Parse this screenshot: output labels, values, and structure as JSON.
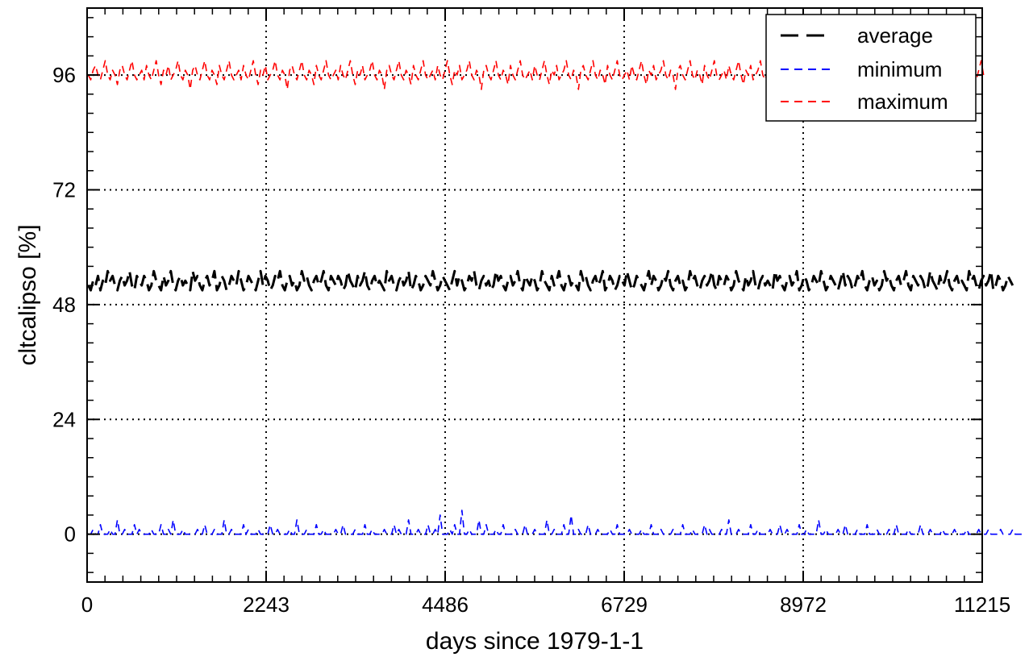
{
  "chart_data": {
    "type": "line",
    "title": "",
    "xlabel": "days since 1979-1-1",
    "ylabel": "cltcalipso [%]",
    "xlim": [
      0,
      11215
    ],
    "ylim": [
      -10,
      110
    ],
    "xticks": [
      0,
      2243,
      4486,
      6729,
      8972,
      11215
    ],
    "xtick_labels": [
      "0",
      "2243",
      "4486",
      "6729",
      "8972",
      "11215"
    ],
    "yticks": [
      0,
      24,
      48,
      72,
      96
    ],
    "ytick_labels": [
      "0",
      "24",
      "48",
      "72",
      "96"
    ],
    "grid": true,
    "legend_position": "top-right",
    "series": [
      {
        "name": "average",
        "color": "#000000",
        "style": "long-dash",
        "x_start": 15,
        "x_step": 30.4,
        "values": [
          52,
          51,
          53,
          52,
          54,
          51,
          53,
          52,
          55,
          53,
          54,
          52,
          51,
          53,
          54,
          52,
          53,
          55,
          52,
          51,
          54,
          53,
          52,
          54,
          53,
          51,
          52,
          55,
          53,
          52,
          51,
          54,
          52,
          53,
          55,
          52,
          51,
          53,
          54,
          52,
          53,
          52,
          51,
          55,
          53,
          54,
          52,
          51,
          53,
          54,
          52,
          53,
          55,
          51,
          52,
          54,
          53,
          51,
          52,
          54,
          53,
          52,
          55,
          53,
          51,
          52,
          54,
          53,
          52,
          51,
          53,
          55,
          52,
          54,
          53,
          51,
          52,
          54,
          53,
          55,
          52,
          51,
          53,
          54,
          52,
          53,
          51,
          52,
          55,
          53,
          54,
          52,
          51,
          53,
          54,
          52,
          53,
          55,
          52,
          51,
          54,
          53,
          52,
          54,
          53,
          51,
          52,
          55,
          53,
          52,
          51,
          54,
          52,
          53,
          55,
          52,
          51,
          53,
          54,
          52,
          53,
          52,
          51,
          55,
          53,
          54,
          52,
          51,
          53,
          54,
          52,
          53,
          55,
          51,
          52,
          54,
          53,
          51,
          52,
          54,
          53,
          52,
          55,
          53,
          51,
          52,
          54,
          53,
          52,
          51,
          53,
          55,
          52,
          54,
          53,
          51,
          52,
          54,
          53,
          55,
          52,
          51,
          53,
          54,
          52,
          53,
          51,
          52,
          55,
          53,
          54,
          52,
          51,
          53,
          54,
          52,
          53,
          55,
          52,
          51,
          54,
          53,
          52,
          54,
          53,
          51,
          52,
          55,
          53,
          52,
          51,
          54,
          52,
          53,
          55,
          52,
          51,
          53,
          54,
          52,
          53,
          52,
          51,
          55,
          53,
          54,
          52,
          51,
          53,
          54,
          52,
          53,
          55,
          51,
          52,
          54,
          53,
          51,
          52,
          54,
          53,
          52,
          55,
          53,
          51,
          52,
          54,
          53,
          52,
          51,
          53,
          55,
          52,
          54,
          53,
          51,
          52,
          54,
          53,
          55,
          52,
          51,
          53,
          54,
          52,
          53,
          51,
          52,
          55,
          53,
          54,
          52,
          51,
          53,
          54,
          52,
          53,
          55,
          52,
          51,
          54,
          53,
          52,
          54,
          53,
          51,
          52,
          55,
          53,
          52,
          51,
          54,
          52,
          53,
          55,
          52,
          51,
          53,
          54,
          52,
          53,
          52,
          51,
          55,
          53,
          54,
          52,
          51,
          53,
          54,
          52,
          53,
          55,
          51,
          52,
          54,
          53,
          51,
          52,
          54,
          53,
          52,
          55,
          53,
          51,
          52,
          54,
          53,
          52,
          51,
          53,
          55,
          52,
          54,
          53,
          51,
          52,
          54,
          53,
          55,
          52,
          51,
          53,
          54,
          52,
          53,
          51,
          52,
          55,
          53,
          54,
          52,
          51,
          53,
          54,
          52,
          53,
          55,
          52,
          51,
          54,
          53,
          52,
          54,
          53,
          51,
          52,
          55,
          53,
          52,
          51,
          54,
          52,
          53,
          55,
          52,
          51,
          53,
          54,
          52,
          53,
          52,
          51,
          55,
          53,
          54,
          52,
          51,
          53,
          54,
          52,
          53,
          55,
          51,
          52,
          54,
          53,
          51,
          52,
          54,
          53,
          52
        ]
      },
      {
        "name": "minimum",
        "color": "#0000ff",
        "style": "dash",
        "x_start": 15,
        "x_step": 30.4,
        "values": [
          0,
          0,
          1,
          0,
          0,
          2,
          0,
          0,
          0,
          1,
          0,
          0,
          3,
          0,
          0,
          1,
          0,
          0,
          0,
          2,
          0,
          1,
          0,
          0,
          0,
          0,
          1,
          0,
          0,
          0,
          2,
          0,
          0,
          1,
          0,
          3,
          0,
          0,
          0,
          1,
          0,
          0,
          0,
          0,
          0,
          1,
          0,
          0,
          2,
          0,
          0,
          0,
          1,
          0,
          0,
          0,
          3,
          0,
          0,
          1,
          0,
          0,
          0,
          0,
          2,
          0,
          1,
          0,
          0,
          0,
          1,
          0,
          0,
          0,
          0,
          2,
          0,
          0,
          1,
          0,
          0,
          0,
          0,
          1,
          0,
          0,
          3,
          0,
          0,
          0,
          1,
          0,
          0,
          0,
          2,
          0,
          0,
          1,
          0,
          0,
          0,
          0,
          1,
          0,
          0,
          2,
          0,
          0,
          0,
          0,
          1,
          0,
          0,
          0,
          2,
          0,
          0,
          1,
          0,
          0,
          0,
          0,
          1,
          0,
          0,
          0,
          2,
          0,
          1,
          0,
          0,
          0,
          3,
          0,
          0,
          0,
          1,
          0,
          0,
          0,
          2,
          0,
          0,
          1,
          0,
          4,
          0,
          0,
          0,
          1,
          0,
          2,
          0,
          0,
          5,
          0,
          0,
          1,
          0,
          0,
          0,
          3,
          0,
          0,
          2,
          0,
          0,
          0,
          1,
          0,
          0,
          2,
          0,
          0,
          0,
          0,
          1,
          0,
          0,
          0,
          2,
          0,
          0,
          0,
          1,
          0,
          0,
          0,
          0,
          3,
          0,
          0,
          1,
          0,
          0,
          0,
          2,
          0,
          0,
          4,
          0,
          0,
          1,
          0,
          0,
          0,
          2,
          0,
          0,
          0,
          1,
          0,
          0,
          0,
          0,
          1,
          0,
          0,
          2,
          0,
          0,
          0,
          0,
          1,
          0,
          0,
          0,
          0,
          1,
          0,
          0,
          0,
          2,
          0,
          0,
          0,
          1,
          0,
          0,
          0,
          0,
          1,
          0,
          0,
          0,
          2,
          0,
          0,
          0,
          1,
          0,
          0,
          0,
          0,
          2,
          0,
          1,
          0,
          0,
          0,
          0,
          1,
          0,
          0,
          3,
          0,
          0,
          0,
          1,
          0,
          0,
          0,
          0,
          2,
          0,
          0,
          1,
          0,
          0,
          0,
          0,
          1,
          0,
          0,
          0,
          2,
          0,
          0,
          1,
          0,
          0,
          0,
          0,
          2,
          0,
          0,
          1,
          0,
          0,
          0,
          0,
          3,
          0,
          0,
          1,
          0,
          0,
          0,
          0,
          1,
          0,
          0,
          2,
          0,
          0,
          0,
          0,
          1,
          0,
          0,
          0,
          2,
          0,
          0,
          0,
          1,
          0,
          0,
          0,
          0,
          1,
          0,
          0,
          2,
          0,
          0,
          0,
          0,
          1,
          0,
          0,
          0,
          0,
          2,
          0,
          0,
          0,
          1,
          0,
          0,
          0,
          0,
          1,
          0,
          0,
          0,
          0,
          1,
          0,
          0,
          0,
          0,
          1,
          0,
          0,
          0,
          0,
          1,
          0,
          0,
          0,
          1,
          0,
          0,
          0,
          0,
          1,
          0,
          0,
          0,
          0,
          1,
          0,
          0,
          0,
          0
        ]
      },
      {
        "name": "maximum",
        "color": "#ff0000",
        "style": "dash",
        "x_start": 15,
        "x_step": 30.4,
        "values": [
          96,
          95,
          97,
          98,
          96,
          95,
          97,
          99,
          96,
          95,
          97,
          96,
          94,
          97,
          98,
          96,
          95,
          97,
          99,
          96,
          95,
          96,
          97,
          95,
          98,
          96,
          95,
          97,
          99,
          96,
          94,
          97,
          96,
          98,
          95,
          96,
          97,
          99,
          96,
          95,
          97,
          96,
          93,
          97,
          98,
          96,
          95,
          97,
          99,
          96,
          95,
          97,
          96,
          94,
          98,
          96,
          95,
          97,
          99,
          96,
          95,
          96,
          97,
          95,
          98,
          96,
          95,
          97,
          99,
          96,
          94,
          97,
          96,
          98,
          95,
          96,
          97,
          99,
          96,
          95,
          97,
          96,
          93,
          97,
          98,
          96,
          95,
          97,
          99,
          96,
          95,
          97,
          96,
          94,
          98,
          96,
          95,
          97,
          99,
          96,
          95,
          96,
          97,
          95,
          98,
          96,
          95,
          97,
          99,
          96,
          94,
          97,
          96,
          98,
          95,
          96,
          97,
          99,
          96,
          95,
          97,
          96,
          93,
          97,
          98,
          96,
          95,
          97,
          99,
          96,
          95,
          97,
          96,
          94,
          98,
          96,
          95,
          97,
          99,
          96,
          95,
          96,
          97,
          95,
          98,
          96,
          95,
          97,
          99,
          96,
          94,
          97,
          96,
          98,
          95,
          96,
          97,
          99,
          96,
          95,
          97,
          96,
          93,
          97,
          98,
          96,
          95,
          97,
          99,
          96,
          95,
          97,
          96,
          94,
          98,
          96,
          95,
          97,
          99,
          96,
          95,
          96,
          97,
          95,
          98,
          96,
          95,
          97,
          99,
          96,
          94,
          97,
          96,
          98,
          95,
          96,
          97,
          99,
          96,
          95,
          97,
          96,
          93,
          97,
          98,
          96,
          95,
          97,
          99,
          96,
          95,
          97,
          96,
          94,
          98,
          96,
          95,
          97,
          99,
          96,
          95,
          96,
          97,
          95,
          98,
          96,
          95,
          97,
          99,
          96,
          94,
          97,
          96,
          98,
          95,
          96,
          97,
          99,
          96,
          95,
          97,
          96,
          93,
          97,
          98,
          96,
          95,
          97,
          99,
          96,
          95,
          97,
          96,
          94,
          98,
          96,
          95,
          97,
          99,
          96,
          95,
          96,
          97,
          95,
          98,
          96,
          95,
          97,
          99,
          96,
          94,
          97,
          96,
          98,
          95,
          96,
          97,
          99,
          96,
          95,
          97,
          96,
          93,
          97,
          98,
          96,
          95,
          97,
          99,
          96,
          95,
          97,
          96,
          94,
          98,
          96,
          95,
          97,
          99,
          96,
          95,
          96,
          97,
          95,
          98,
          96,
          95,
          97,
          99,
          96,
          94,
          97,
          96,
          98,
          95,
          96,
          97,
          99,
          96,
          95,
          97,
          96,
          93,
          97,
          98,
          96,
          95,
          97,
          99,
          96,
          95,
          97,
          96,
          94,
          98,
          96,
          95,
          97,
          99,
          96,
          95,
          96,
          97,
          95,
          98,
          96,
          95,
          97,
          99,
          96,
          94,
          97,
          96,
          98,
          95,
          96,
          97,
          99,
          96,
          95,
          97,
          96,
          93,
          97,
          98,
          96,
          95,
          97,
          99,
          96
        ]
      }
    ]
  }
}
